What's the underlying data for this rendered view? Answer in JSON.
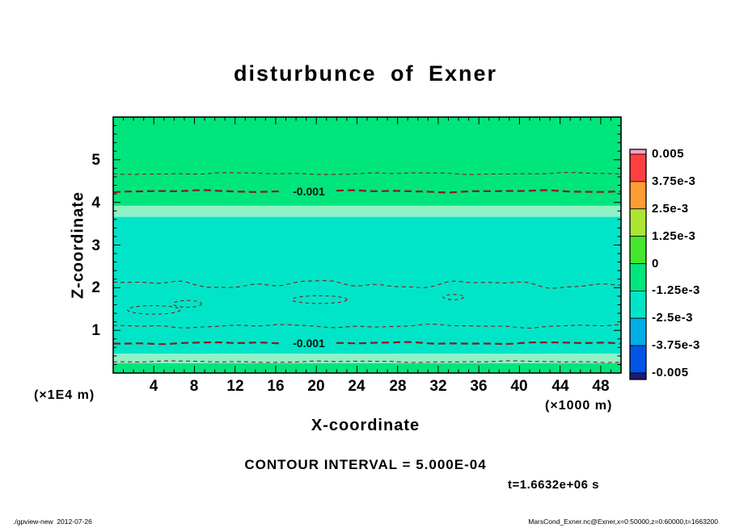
{
  "title": "disturbunce of Exner",
  "axes": {
    "x_label": "X-coordinate",
    "x_unit": "(×1000 m)",
    "x_ticks": [
      "4",
      "8",
      "12",
      "16",
      "20",
      "24",
      "28",
      "32",
      "36",
      "40",
      "44",
      "48"
    ],
    "y_label": "Z-coordinate",
    "y_unit": "(×1E4 m)",
    "y_ticks": [
      "5",
      "4",
      "3",
      "2",
      "1"
    ]
  },
  "colorbar": {
    "labels": [
      "0.005",
      "3.75e-3",
      "2.5e-3",
      "1.25e-3",
      "0",
      "-1.25e-3",
      "-2.5e-3",
      "-3.75e-3",
      "-0.005"
    ],
    "colors": [
      "#FF9FC8",
      "#FF4040",
      "#FF9C33",
      "#AAE633",
      "#44E62E",
      "#00E67C",
      "#00E5C8",
      "#00AEE6",
      "#0055E6",
      "#201878"
    ]
  },
  "contours": {
    "label": "-0.001",
    "color": "#8B1A1A"
  },
  "annotations": {
    "contour_interval": "CONTOUR INTERVAL = 5.000E-04",
    "time": "t=1.6632e+06 s"
  },
  "footer": {
    "left": "./gpview-new  2012-07-26",
    "right": "MarsCond_Exner.nc@Exner,x=0:50000,z=0:60000,t=1663200"
  },
  "chart_data": {
    "type": "heatmap",
    "subtype": "filled-contour",
    "title": "disturbunce of Exner",
    "xlabel": "X-coordinate (×1000 m)",
    "ylabel": "Z-coordinate (×1E4 m)",
    "xlim": [
      0,
      50
    ],
    "zlim": [
      0,
      6
    ],
    "x_major_ticks": [
      4,
      8,
      12,
      16,
      20,
      24,
      28,
      32,
      36,
      40,
      44,
      48
    ],
    "x_minor_step": 1,
    "z_major_ticks": [
      1,
      2,
      3,
      4,
      5
    ],
    "z_minor_step": 0.2,
    "contour_interval": 0.0005,
    "tone_boundaries": [
      0.005,
      0.00375,
      0.0025,
      0.00125,
      0,
      -0.00125,
      -0.0025,
      -0.00375,
      -0.005
    ],
    "fill_bands": [
      {
        "z_from": 3.92,
        "z_to": 6.0,
        "color": "#00E67C",
        "approx_value": "0 to -1.25e-3"
      },
      {
        "z_from": 3.66,
        "z_to": 3.92,
        "color": "#8EF2C6",
        "approx_value": "-1.25e-3 transition"
      },
      {
        "z_from": 0.45,
        "z_to": 3.66,
        "color": "#00E5C8",
        "approx_value": "-1.25e-3 to -2.5e-3"
      },
      {
        "z_from": 0.23,
        "z_to": 0.45,
        "color": "#8EF2C6",
        "approx_value": "-1.25e-3 transition"
      },
      {
        "z_from": 0.0,
        "z_to": 0.23,
        "color": "#00E67C",
        "approx_value": "0 to -1.25e-3"
      }
    ],
    "contour_lines": [
      {
        "z": 4.675,
        "value": -0.0005,
        "thick": false,
        "amp": 1.5,
        "labeled": false
      },
      {
        "z": 4.26,
        "value": -0.001,
        "thick": true,
        "amp": 1.5,
        "labeled": true
      },
      {
        "z": 2.08,
        "value": -0.0015,
        "thick": false,
        "amp": 6.0,
        "labeled": false
      },
      {
        "z": 1.1,
        "value": -0.0015,
        "thick": false,
        "amp": 2.5,
        "labeled": false
      },
      {
        "z": 0.7,
        "value": -0.001,
        "thick": true,
        "amp": 1.5,
        "labeled": true
      },
      {
        "z": 0.265,
        "value": -0.0005,
        "thick": false,
        "amp": 1.2,
        "labeled": false
      }
    ],
    "contour_blobs": [
      {
        "x": 4.0,
        "z": 1.48,
        "rx": 2.6,
        "rz": 0.1,
        "value": -0.002
      },
      {
        "x": 7.3,
        "z": 1.62,
        "rx": 1.4,
        "rz": 0.08,
        "value": -0.002
      },
      {
        "x": 20.3,
        "z": 1.72,
        "rx": 2.7,
        "rz": 0.09,
        "value": -0.002
      },
      {
        "x": 33.5,
        "z": 1.78,
        "rx": 1.0,
        "rz": 0.06,
        "value": -0.002
      }
    ],
    "time": "t=1.6632e+06 s"
  }
}
